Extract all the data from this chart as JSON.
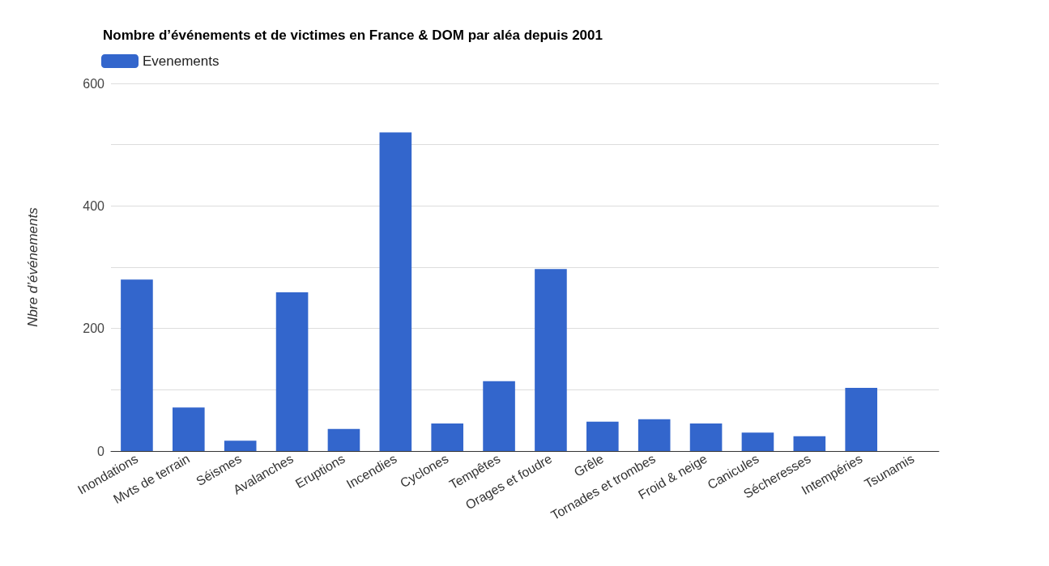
{
  "chart_data": {
    "type": "bar",
    "title": "Nombre d’événements et de victimes en France & DOM par aléa depuis 2001",
    "ylabel": "Nbre d’événements",
    "categories": [
      "Inondations",
      "Mvts de terrain",
      "Séismes",
      "Avalanches",
      "Eruptions",
      "Incendies",
      "Cyclones",
      "Tempêtes",
      "Orages et foudre",
      "Grêle",
      "Tornades et trombes",
      "Froid & neige",
      "Canicules",
      "Sécheresses",
      "Intempéries",
      "Tsunamis"
    ],
    "series": [
      {
        "name": "Evenements",
        "color": "#3366cc",
        "values": [
          280,
          71,
          17,
          259,
          36,
          520,
          45,
          114,
          297,
          48,
          52,
          45,
          30,
          24,
          103,
          0
        ]
      }
    ],
    "ylim": [
      0,
      600
    ],
    "yticks": [
      0,
      {
        "value": 100,
        "label": null
      },
      200,
      {
        "value": 300,
        "label": null
      },
      400,
      {
        "value": 500,
        "label": null
      },
      600
    ],
    "grid": "y",
    "legend": "top left"
  }
}
